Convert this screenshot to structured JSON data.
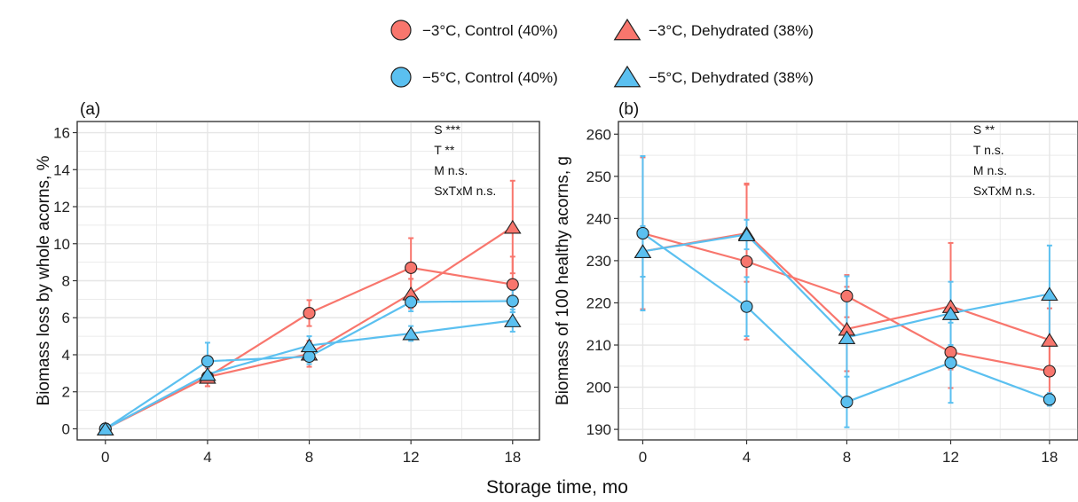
{
  "figure": {
    "shared_xlabel": "Storage time, mo"
  },
  "legend": {
    "items": [
      {
        "label": "−3°C, Control (40%)",
        "marker": "circle",
        "color": "#F8766D"
      },
      {
        "label": "−3°C, Dehydrated (38%)",
        "marker": "triangle",
        "color": "#F8766D"
      },
      {
        "label": "−5°C, Control (40%)",
        "marker": "circle",
        "color": "#5BC0F0"
      },
      {
        "label": "−5°C, Dehydrated (38%)",
        "marker": "triangle",
        "color": "#5BC0F0"
      }
    ]
  },
  "colors": {
    "red": "#F8766D",
    "blue": "#5BC0F0",
    "grid": "#E6E6E6",
    "axis": "#333333"
  },
  "chart_data": [
    {
      "type": "line",
      "panel_label": "(a)",
      "ylabel": "Biomass loss by whole acorns, %",
      "x": [
        0,
        4,
        8,
        12,
        18
      ],
      "x_ticks": [
        "0",
        "4",
        "8",
        "12",
        "18"
      ],
      "ylim": [
        -0.6,
        16.6
      ],
      "y_ticks": [
        0,
        2,
        4,
        6,
        8,
        10,
        12,
        14,
        16
      ],
      "annotations": [
        "S ***",
        "T **",
        "M n.s.",
        "SxTxM n.s."
      ],
      "grid": true,
      "series": [
        {
          "name": "−3°C, Control (40%)",
          "marker": "circle",
          "color": "#F8766D",
          "values": [
            0,
            2.8,
            6.25,
            8.7,
            7.8
          ],
          "err": [
            0,
            0.5,
            0.7,
            1.6,
            1.5
          ]
        },
        {
          "name": "−3°C, Dehydrated (38%)",
          "marker": "triangle",
          "color": "#F8766D",
          "values": [
            0,
            2.8,
            4.05,
            7.3,
            10.9
          ],
          "err": [
            0,
            0.5,
            0.7,
            0.8,
            2.5
          ]
        },
        {
          "name": "−5°C, Control (40%)",
          "marker": "circle",
          "color": "#5BC0F0",
          "values": [
            0,
            3.65,
            3.9,
            6.85,
            6.9
          ],
          "err": [
            0,
            1.0,
            0.4,
            0.5,
            0.6
          ]
        },
        {
          "name": "−5°C, Dehydrated (38%)",
          "marker": "triangle",
          "color": "#5BC0F0",
          "values": [
            0,
            2.95,
            4.5,
            5.15,
            5.85
          ],
          "err": [
            0,
            0.4,
            0.5,
            0.4,
            0.6
          ]
        }
      ]
    },
    {
      "type": "line",
      "panel_label": "(b)",
      "ylabel": "Biomass of 100 healthy acorns, g",
      "x": [
        0,
        4,
        8,
        12,
        18
      ],
      "x_ticks": [
        "0",
        "4",
        "8",
        "12",
        "18"
      ],
      "ylim": [
        187.5,
        263
      ],
      "y_ticks": [
        190,
        200,
        210,
        220,
        230,
        240,
        250,
        260
      ],
      "annotations": [
        "S **",
        "T n.s.",
        "M n.s.",
        "SxTxM n.s."
      ],
      "grid": true,
      "series": [
        {
          "name": "−3°C, Control (40%)",
          "marker": "circle",
          "color": "#F8766D",
          "values": [
            236.5,
            229.8,
            221.6,
            208.3,
            203.8
          ],
          "err": [
            18,
            18.5,
            5.0,
            8.5,
            6.5
          ]
        },
        {
          "name": "−3°C, Dehydrated (38%)",
          "marker": "triangle",
          "color": "#F8766D",
          "values": [
            232.2,
            236.5,
            213.8,
            219.2,
            211.2
          ],
          "err": [
            6,
            11.5,
            10,
            15,
            7.5
          ]
        },
        {
          "name": "−5°C, Control (40%)",
          "marker": "circle",
          "color": "#5BC0F0",
          "values": [
            236.5,
            219.1,
            196.5,
            205.8,
            197.1
          ],
          "err": [
            18.3,
            7.0,
            6.0,
            9.5,
            1.5
          ]
        },
        {
          "name": "−5°C, Dehydrated (38%)",
          "marker": "triangle",
          "color": "#5BC0F0",
          "values": [
            232.2,
            236.2,
            211.8,
            217.5,
            222.1
          ],
          "err": [
            6,
            3.5,
            14.5,
            7.5,
            11.5
          ]
        }
      ]
    }
  ]
}
